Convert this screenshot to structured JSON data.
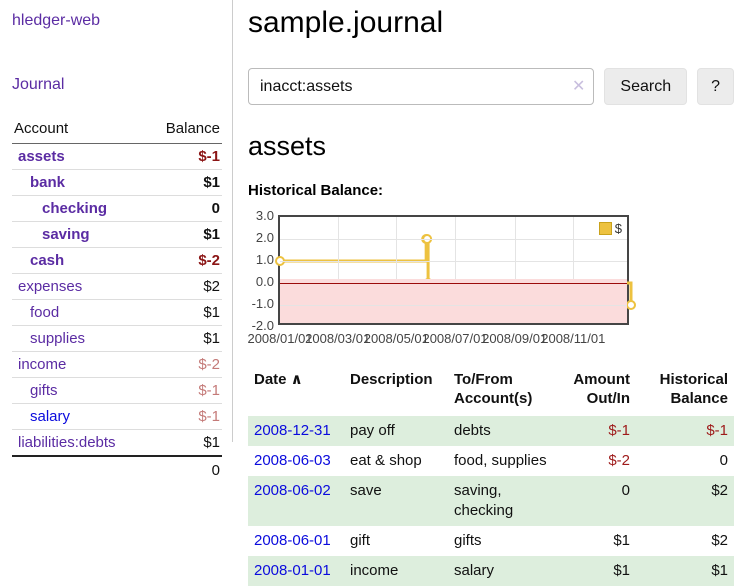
{
  "app": {
    "title": "hledger-web",
    "nav_journal": "Journal"
  },
  "sidebar": {
    "columns": {
      "account": "Account",
      "balance": "Balance"
    },
    "accounts": [
      {
        "name": "assets",
        "level": 1,
        "bold": true,
        "balance": "$-1",
        "balance_style": "neg-strong",
        "link_style": "visited"
      },
      {
        "name": "bank",
        "level": 2,
        "bold": true,
        "balance": "$1",
        "balance_style": "pos-strong",
        "link_style": "visited"
      },
      {
        "name": "checking",
        "level": 3,
        "bold": true,
        "balance": "0",
        "balance_style": "pos-strong",
        "link_style": "visited"
      },
      {
        "name": "saving",
        "level": 3,
        "bold": true,
        "balance": "$1",
        "balance_style": "pos-strong",
        "link_style": "visited"
      },
      {
        "name": "cash",
        "level": 2,
        "bold": true,
        "balance": "$-2",
        "balance_style": "neg-strong",
        "link_style": "visited"
      },
      {
        "name": "expenses",
        "level": 1,
        "bold": false,
        "balance": "$2",
        "balance_style": "pos",
        "link_style": "visited"
      },
      {
        "name": "food",
        "level": 2,
        "bold": false,
        "balance": "$1",
        "balance_style": "pos",
        "link_style": "visited"
      },
      {
        "name": "supplies",
        "level": 2,
        "bold": false,
        "balance": "$1",
        "balance_style": "pos",
        "link_style": "visited"
      },
      {
        "name": "income",
        "level": 1,
        "bold": false,
        "balance": "$-2",
        "balance_style": "neg-dim",
        "link_style": "visited"
      },
      {
        "name": "gifts",
        "level": 2,
        "bold": false,
        "balance": "$-1",
        "balance_style": "neg-dim",
        "link_style": "visited"
      },
      {
        "name": "salary",
        "level": 2,
        "bold": false,
        "balance": "$-1",
        "balance_style": "neg-dim",
        "link_style": "unvisited"
      },
      {
        "name": "liabilities:debts",
        "level": 1,
        "bold": false,
        "balance": "$1",
        "balance_style": "pos",
        "link_style": "visited"
      }
    ],
    "total": "0"
  },
  "header": {
    "title": "sample.journal"
  },
  "search": {
    "value": "inacct:assets",
    "clear_icon": "✕",
    "button_label": "Search",
    "help_label": "?"
  },
  "account_page": {
    "heading": "assets",
    "chart_title": "Historical Balance:"
  },
  "chart_data": {
    "type": "line",
    "title": "Historical Balance:",
    "legend_position": "top-right",
    "grid": true,
    "x_range": [
      "2008-01-01",
      "2008-12-31"
    ],
    "ylim": [
      -2,
      3
    ],
    "yticks": [
      3.0,
      2.0,
      1.0,
      0.0,
      -1.0,
      -2.0
    ],
    "ytick_labels": [
      "3.0",
      "2.0",
      "1.0",
      "0.0",
      "-1.0",
      "-2.0"
    ],
    "xtick_labels": [
      "2008/01/01",
      "2008/03/01",
      "2008/05/01",
      "2008/07/01",
      "2008/09/01",
      "2008/11/01"
    ],
    "series": [
      {
        "name": "$",
        "color": "#edc240",
        "step": true,
        "points": [
          {
            "date": "2008-01-01",
            "value": 1
          },
          {
            "date": "2008-06-01",
            "value": 2
          },
          {
            "date": "2008-06-02",
            "value": 2
          },
          {
            "date": "2008-06-03",
            "value": 0
          },
          {
            "date": "2008-12-31",
            "value": -1
          }
        ]
      }
    ],
    "zero_line_color": "#9b0b0b",
    "negative_region_color": "#fbdcdc"
  },
  "register": {
    "columns": [
      {
        "label": "Date",
        "align": "left",
        "sort_icon": "∧"
      },
      {
        "label": "Description",
        "align": "left"
      },
      {
        "label": "To/From Account(s)",
        "align": "left"
      },
      {
        "label": "Amount Out/In",
        "align": "right"
      },
      {
        "label": "Historical Balance",
        "align": "right"
      }
    ],
    "rows": [
      {
        "date": "2008-12-31",
        "description": "pay off",
        "accounts": "debts",
        "amount": "$-1",
        "amount_neg": true,
        "balance": "$-1",
        "balance_neg": true
      },
      {
        "date": "2008-06-03",
        "description": "eat & shop",
        "accounts": "food, supplies",
        "amount": "$-2",
        "amount_neg": true,
        "balance": "0",
        "balance_neg": false
      },
      {
        "date": "2008-06-02",
        "description": "save",
        "accounts": "saving, checking",
        "amount": "0",
        "amount_neg": false,
        "balance": "$2",
        "balance_neg": false
      },
      {
        "date": "2008-06-01",
        "description": "gift",
        "accounts": "gifts",
        "amount": "$1",
        "amount_neg": false,
        "balance": "$2",
        "balance_neg": false
      },
      {
        "date": "2008-01-01",
        "description": "income",
        "accounts": "salary",
        "amount": "$1",
        "amount_neg": false,
        "balance": "$1",
        "balance_neg": false
      }
    ]
  }
}
